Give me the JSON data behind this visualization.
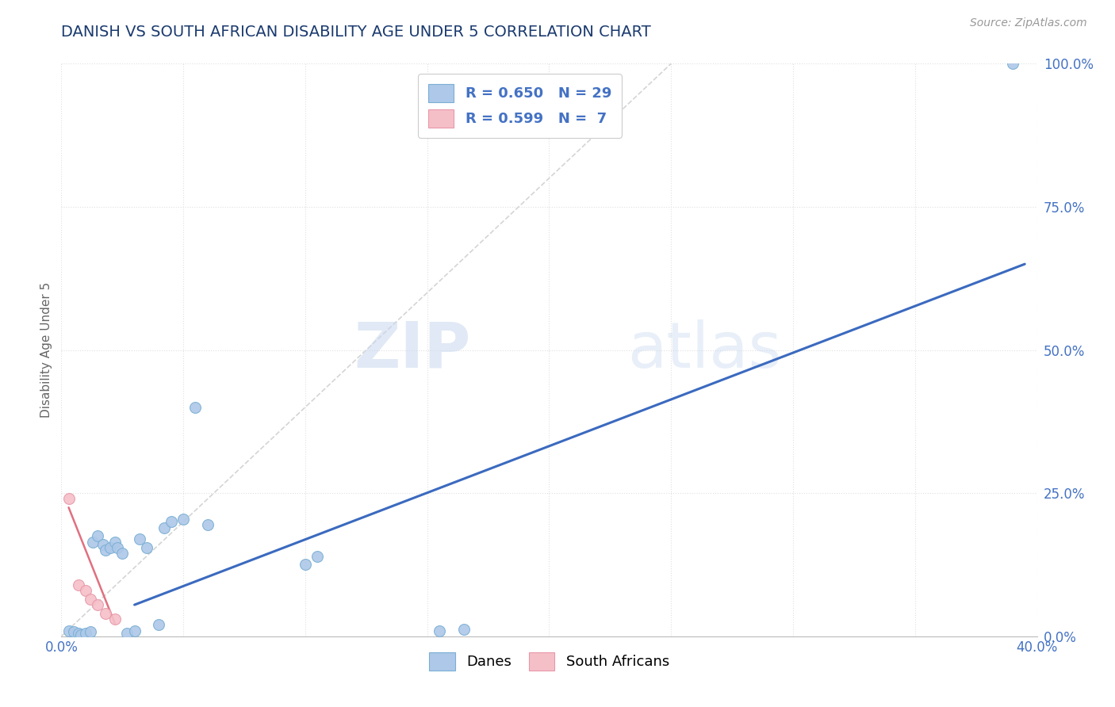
{
  "title": "DANISH VS SOUTH AFRICAN DISABILITY AGE UNDER 5 CORRELATION CHART",
  "source": "Source: ZipAtlas.com",
  "ylabel": "Disability Age Under 5",
  "xlim": [
    0.0,
    0.4
  ],
  "ylim": [
    0.0,
    1.0
  ],
  "xticks": [
    0.0,
    0.05,
    0.1,
    0.15,
    0.2,
    0.25,
    0.3,
    0.35,
    0.4
  ],
  "yticks": [
    0.0,
    0.25,
    0.5,
    0.75,
    1.0
  ],
  "yticklabels": [
    "0.0%",
    "25.0%",
    "50.0%",
    "75.0%",
    "100.0%"
  ],
  "legend_line1": "R = 0.650   N = 29",
  "legend_line2": "R = 0.599   N =  7",
  "blue_color": "#adc8e8",
  "pink_color": "#f5bfc8",
  "blue_edge_color": "#7aafd4",
  "pink_edge_color": "#e898a8",
  "blue_line_color": "#3b6abf",
  "pink_line_color": "#e07080",
  "ref_line_color": "#d0d0d0",
  "watermark_zip": "ZIP",
  "watermark_atlas": "atlas",
  "title_color": "#1a3a6e",
  "axis_label_color": "#666666",
  "tick_color": "#4472c4",
  "legend_text_color": "#4472c4",
  "background_color": "#ffffff",
  "grid_color": "#e0e0e0",
  "blue_scatter_x": [
    0.003,
    0.005,
    0.007,
    0.008,
    0.01,
    0.012,
    0.013,
    0.015,
    0.017,
    0.018,
    0.02,
    0.022,
    0.023,
    0.025,
    0.027,
    0.03,
    0.032,
    0.035,
    0.04,
    0.042,
    0.045,
    0.05,
    0.055,
    0.06,
    0.1,
    0.105,
    0.155,
    0.165,
    0.39
  ],
  "blue_scatter_y": [
    0.01,
    0.008,
    0.005,
    0.003,
    0.005,
    0.008,
    0.165,
    0.175,
    0.16,
    0.15,
    0.155,
    0.165,
    0.155,
    0.145,
    0.005,
    0.01,
    0.17,
    0.155,
    0.02,
    0.19,
    0.2,
    0.205,
    0.4,
    0.195,
    0.125,
    0.14,
    0.01,
    0.012,
    1.0
  ],
  "pink_scatter_x": [
    0.003,
    0.007,
    0.01,
    0.012,
    0.015,
    0.018,
    0.022
  ],
  "pink_scatter_y": [
    0.24,
    0.09,
    0.08,
    0.065,
    0.055,
    0.04,
    0.03
  ],
  "blue_line_x": [
    0.03,
    0.395
  ],
  "blue_line_y": [
    0.055,
    0.65
  ],
  "pink_line_x": [
    0.003,
    0.022
  ],
  "pink_line_y": [
    0.225,
    0.022
  ],
  "ref_line_x": [
    0.0,
    0.25
  ],
  "ref_line_y": [
    0.0,
    1.0
  ]
}
